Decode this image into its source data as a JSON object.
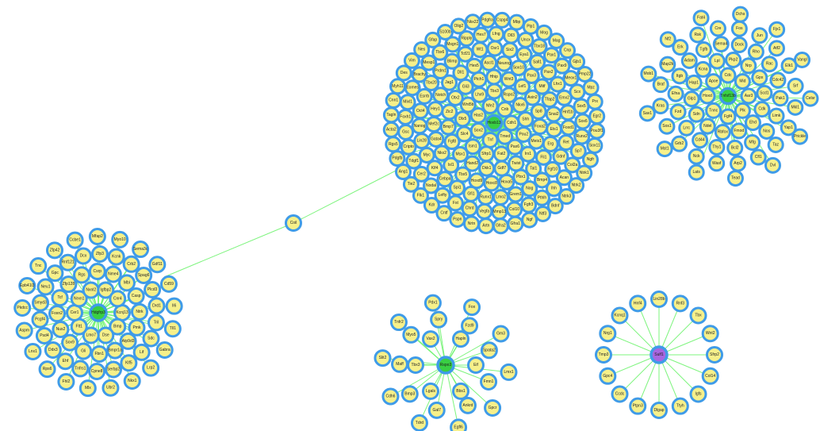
{
  "colors": {
    "background": "#ffffff",
    "node_fill": "#f6f08a",
    "node_ring": "#3f9be8",
    "hub_fill": "#39cf43",
    "hub_purple_fill": "#a866e0",
    "edge": "#66f266"
  },
  "network": {
    "bridge_node": "Coil",
    "clusters": [
      {
        "id": "cluster-left",
        "hub": "Hdgfrp3",
        "nodes": [
          "Kcnj13",
          "Bmp",
          "Dse",
          "Lmo7",
          "Flt1",
          "Cer1",
          "Nrxn1",
          "Nxnl2",
          "Igfbp2",
          "Cnr4",
          "Pmk",
          "Atp9d3",
          "Bmpr1a",
          "Fbn1",
          "Gli",
          "Sox9",
          "Nus2",
          "Foxn2",
          "Tcf",
          "Zfp128",
          "Rgs",
          "Csrp",
          "Nme4",
          "Mbl",
          "Casp",
          "Ntrk",
          "Lif",
          "Klf5",
          "Serbp2",
          "Cpne8",
          "Tnfrs1",
          "Ehf",
          "Ddx3",
          "Psd4",
          "Pcgf4",
          "Smyd3",
          "Neu1",
          "Gpc",
          "Rnf121",
          "Dcx",
          "Zfp3",
          "Kcnk",
          "Crb2",
          "Spag6",
          "Plcd3",
          "Drd1",
          "Tril",
          "Sdc",
          "Nkx1",
          "Ubr2",
          "Mlx",
          "Fhl2",
          "Rps6",
          "Lnx1",
          "Aspm",
          "Pkdcc",
          "Epb41l3",
          "Tnc",
          "Zfp42",
          "Ccbe1",
          "Mfap2",
          "Myo10",
          "Sema3c",
          "Gdf11",
          "Cd59",
          "Il6",
          "Tll1",
          "Gabra",
          "Lrp2"
        ]
      },
      {
        "id": "cluster-top-center",
        "hub": "Hoxb13",
        "nodes": [
          "Cdh1",
          "Tmed",
          "Tnf",
          "Sox2",
          "Has2",
          "Nfe2",
          "Cnb",
          "Pou2",
          "Pax6",
          "Fat2",
          "Sfrp1",
          "Ism1",
          "Slc4",
          "Dlx5",
          "Wnt5b",
          "Lhx9",
          "Tbx3",
          "Rspo2",
          "Nkx6",
          "Shh",
          "Irx1",
          "Twist",
          "Gdf7",
          "Dkk1",
          "Hand2",
          "Msx1",
          "Fgf8",
          "Bmp7",
          "Zic2",
          "Otx2",
          "Gli3",
          "Ptch1",
          "Hhip",
          "Wnt3",
          "Lef1",
          "Axin2",
          "Sp8",
          "Foxa2",
          "Meis1",
          "Pbx1",
          "Hoxa5",
          "Hoxc8",
          "Hoxd9",
          "Tbx5",
          "Isl1",
          "Nkx2",
          "Gata4",
          "Mef2c",
          "Hey1",
          "Notch",
          "Jag1",
          "Dll1",
          "Hes5",
          "Ascl1",
          "Neurog",
          "Sox10",
          "Pax3",
          "Mitf",
          "Tfap2",
          "Snai2",
          "Ets1",
          "Erg",
          "Fli1",
          "Tal1",
          "Lmo2",
          "Runx1",
          "Gfi1",
          "Spi1",
          "Cebpa",
          "Klf4",
          "Myc",
          "Lin28",
          "Nanog",
          "Oct4",
          "Esrrb",
          "Tbx20",
          "Prdm1",
          "Blimp",
          "Tcf21",
          "Wt1",
          "Osr1",
          "Six2",
          "Eya1",
          "Sall1",
          "Pax2",
          "Lhx1",
          "Emx2",
          "Hnf1b",
          "Foxd1",
          "Ret",
          "Gdnf",
          "Fgf10",
          "Bmp4",
          "Nog",
          "Grem1",
          "Chrd",
          "Fst",
          "Lefty",
          "Nodal",
          "Cer2",
          "Tdgf1",
          "Cripto",
          "Gsc",
          "Foxh1",
          "Mixl1",
          "Eomes",
          "Brachy",
          "Mesp1",
          "Tbx6",
          "Msgn1",
          "Ripply",
          "Hes7",
          "Lfng",
          "Dll3",
          "Uncx",
          "Tbx18",
          "Pax1",
          "Pax9",
          "Meox1",
          "Scx",
          "Sox5",
          "Sox6",
          "Runx2",
          "Sp7",
          "Col2a",
          "Acan",
          "Ihh",
          "Pthlh",
          "Fgfr3",
          "Col10",
          "Mmp13",
          "Vegfa",
          "Kdr",
          "Flk1",
          "Tie2",
          "Ang1",
          "Pdgfb",
          "Rgs5",
          "Acta2",
          "Tagln",
          "Cnn1",
          "Myh11",
          "Des",
          "Vim",
          "Nes",
          "Gfap",
          "S100b",
          "Olig2",
          "Nkx22",
          "Pdgfra",
          "Cspg4",
          "Mbp",
          "Plp1",
          "Mog",
          "Mag",
          "Cnp",
          "Gjb1",
          "Pmp22",
          "Mpz",
          "Prx",
          "Egr2",
          "Pou3f1",
          "Sox11",
          "Ngfr",
          "Ntrk1",
          "Ntrk2",
          "Ntrk3",
          "Bdnf",
          "Ntf3",
          "Ngf",
          "Gfra1",
          "Gfra2",
          "Artn",
          "Nrtn",
          "Pspn",
          "Cntf",
          "Lif2",
          "Osm",
          "Il11",
          "Ctf1",
          "Clcf1",
          "Crlf1",
          "Il27",
          "Ebi3",
          "Il35"
        ]
      },
      {
        "id": "cluster-top-right",
        "hub": "Tnfsf13b",
        "nodes": [
          "Aar3",
          "Plk",
          "Fgf4",
          "Tnnc",
          "Hoxd",
          "Apoe",
          "Cdc",
          "Mid",
          "Cdk",
          "Ehd",
          "Fmod",
          "Rbfox",
          "Ndel",
          "Sdn",
          "Glp1",
          "Hap1",
          "Kcna",
          "Lpl",
          "Pkp2",
          "Nrp",
          "Gpx",
          "Scd1",
          "Nos",
          "Mfg",
          "Bcl2",
          "Thy1",
          "Cd44",
          "Lrrc",
          "Fzd",
          "Efna",
          "Itgb",
          "Adam",
          "Tgfb",
          "Sema4",
          "Dock",
          "Rho",
          "Rac",
          "Cdc42",
          "Pak1",
          "Limk",
          "Cfl1",
          "Arp2",
          "Wasf",
          "Nck",
          "Grb2",
          "Sos1",
          "Kras",
          "Braf",
          "Map2k",
          "Erk",
          "Rsk",
          "Cre",
          "Fos",
          "Jun",
          "Atf2",
          "Elk1",
          "Srf",
          "Mkl1",
          "Yap1",
          "Taz",
          "Tead",
          "Lats",
          "Mst1",
          "Sav1",
          "Mob1",
          "Nf2",
          "Fat4",
          "Dchs",
          "Fjx1",
          "Vangl",
          "Celsr",
          "Prickle",
          "Dvl"
        ]
      },
      {
        "id": "cluster-bottom-center",
        "hub": "Rspo3",
        "nodes": [
          "Eif",
          "Bbs1",
          "Lgals",
          "Tbx3",
          "Vax2",
          "Hapln",
          "Fmn1",
          "Ankrd",
          "Gal7",
          "Bmp3",
          "Maff",
          "Myo5",
          "Spry",
          "Fzd9",
          "Spata2",
          "Gpcr",
          "Egfl6",
          "Tdrd",
          "Cdh6",
          "Slit2",
          "Tnfr2",
          "Pdx1",
          "Fox",
          "Gm3",
          "Lmx1"
        ]
      },
      {
        "id": "cluster-bottom-right",
        "hub": "Sulf1",
        "nodes": [
          "Sfrp2",
          "Col14",
          "Igfs",
          "Ttyh",
          "Dlgap",
          "Ptpn3",
          "Ccdc",
          "Gpc4",
          "Tmp3",
          "Nrg1",
          "Kcnq1",
          "Hnf4",
          "Lin28b",
          "Rnf3",
          "Tbx",
          "Wnt2"
        ]
      }
    ]
  }
}
